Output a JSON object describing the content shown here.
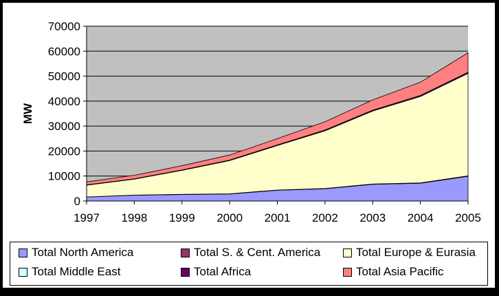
{
  "chart_data": {
    "type": "area",
    "stacked": true,
    "title": "",
    "xlabel": "",
    "ylabel": "MW",
    "x": [
      "1997",
      "1998",
      "1999",
      "2000",
      "2001",
      "2002",
      "2003",
      "2004",
      "2005"
    ],
    "ylim": [
      0,
      70000
    ],
    "yticks": [
      "0",
      "10000",
      "20000",
      "30000",
      "40000",
      "50000",
      "60000",
      "70000"
    ],
    "grid": true,
    "legend_position": "bottom",
    "series": [
      {
        "name": "Total North America",
        "color": "#9999ff",
        "values": [
          1600,
          2300,
          2600,
          2800,
          4300,
          4900,
          6700,
          7100,
          9900
        ]
      },
      {
        "name": "Total S. & Cent. America",
        "color": "#993366",
        "values": [
          50,
          60,
          80,
          100,
          110,
          120,
          130,
          150,
          200
        ]
      },
      {
        "name": "Total Europe & Eurasia",
        "color": "#ffffcc",
        "values": [
          4700,
          6400,
          9600,
          13300,
          17800,
          23100,
          29200,
          34600,
          41000
        ]
      },
      {
        "name": "Total Middle East",
        "color": "#ccffff",
        "values": [
          10,
          10,
          10,
          10,
          10,
          10,
          10,
          10,
          10
        ]
      },
      {
        "name": "Total Africa",
        "color": "#660066",
        "values": [
          100,
          120,
          150,
          200,
          250,
          300,
          350,
          400,
          450
        ]
      },
      {
        "name": "Total Asia Pacific",
        "color": "#ff8080",
        "values": [
          1200,
          1400,
          1700,
          2000,
          2500,
          3300,
          4100,
          5300,
          7800
        ]
      }
    ],
    "plot_background": "#c0c0c0"
  }
}
